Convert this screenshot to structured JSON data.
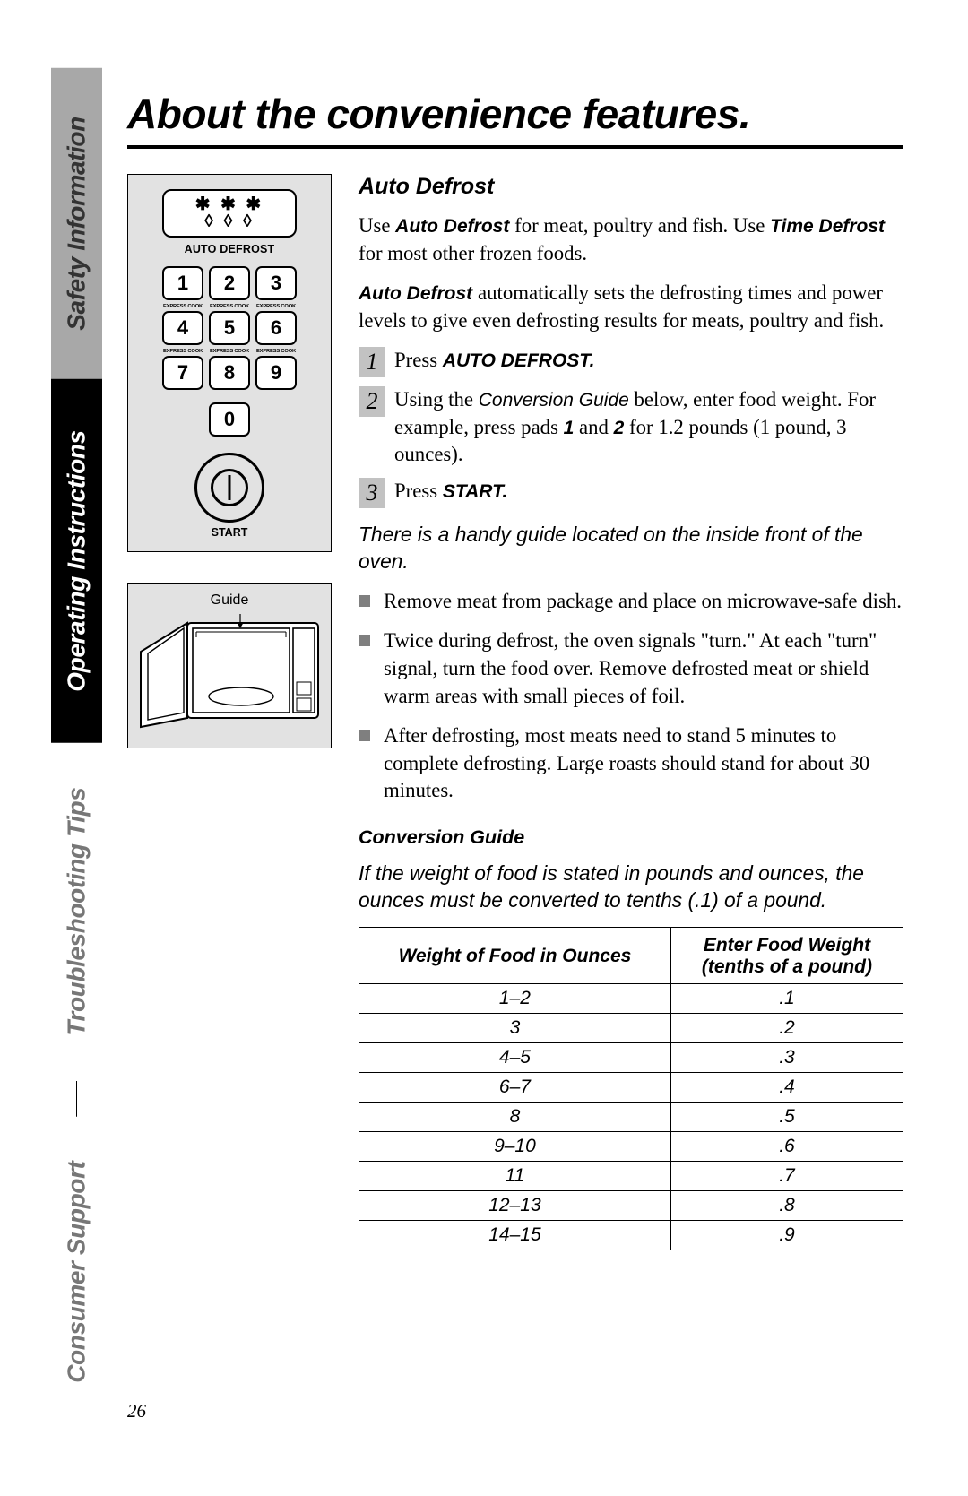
{
  "page_number": "26",
  "title": "About the convenience features.",
  "tabs": [
    {
      "label": "Safety Information",
      "style": "gray"
    },
    {
      "label": "Operating Instructions",
      "style": "black"
    },
    {
      "label": "Troubleshooting Tips",
      "style": "white"
    },
    {
      "label": "Consumer Support",
      "style": "white"
    }
  ],
  "keypad": {
    "display_stars_top": "✱ ✱ ✱",
    "display_drops": "◊ ◊ ◊",
    "label": "AUTO DEFROST",
    "express": "EXPRESS COOK",
    "pads": [
      "1",
      "2",
      "3",
      "4",
      "5",
      "6",
      "7",
      "8",
      "9",
      "0"
    ],
    "start": "START"
  },
  "guide": {
    "label": "Guide"
  },
  "section": {
    "heading": "Auto Defrost",
    "intro_1_pre": "Use ",
    "intro_1_bi1": "Auto Defrost ",
    "intro_1_mid": " for meat, poultry and fish. Use ",
    "intro_1_bi2": "Time Defrost ",
    "intro_1_end": " for most other frozen foods.",
    "intro_2_pre": "",
    "intro_2_bi": "Auto Defrost ",
    "intro_2_end": " automatically sets the defrosting times and power levels to give even defrosting results for meats, poultry and fish.",
    "steps": [
      {
        "n": "1",
        "pre": "Press ",
        "bi": "AUTO DEFROST.",
        "post": ""
      },
      {
        "n": "2",
        "pre": "Using the ",
        "i": "Conversion Guide",
        "mid": " below, enter food weight. For example, press pads ",
        "b1": "1",
        "mid2": " and ",
        "b2": "2",
        "post": "  for 1.2 pounds (1 pound, 3 ounces)."
      },
      {
        "n": "3",
        "pre": "Press ",
        "bi": "START.",
        "post": ""
      }
    ],
    "handy_guide": "There is a handy guide located on the inside front of the oven.",
    "bullets": [
      "Remove meat from package and place on microwave-safe dish.",
      "Twice during defrost, the oven signals \"turn.\" At each \"turn\" signal, turn the food over. Remove defrosted meat or shield warm areas with small pieces of foil.",
      "After defrosting, most meats need to stand 5 minutes to complete defrosting. Large roasts should stand for about 30 minutes."
    ],
    "conv_heading": "Conversion Guide",
    "conv_note": "If the weight of food is stated in pounds and ounces, the ounces must be converted to tenths (.1) of a pound.",
    "table": {
      "col1": "Weight of Food in Ounces",
      "col2_l1": "Enter Food Weight",
      "col2_l2": "(tenths of a pound)",
      "rows": [
        [
          "1–2",
          ".1"
        ],
        [
          "3",
          ".2"
        ],
        [
          "4–5",
          ".3"
        ],
        [
          "6–7",
          ".4"
        ],
        [
          "8",
          ".5"
        ],
        [
          "9–10",
          ".6"
        ],
        [
          "11",
          ".7"
        ],
        [
          "12–13",
          ".8"
        ],
        [
          "14–15",
          ".9"
        ]
      ]
    }
  }
}
